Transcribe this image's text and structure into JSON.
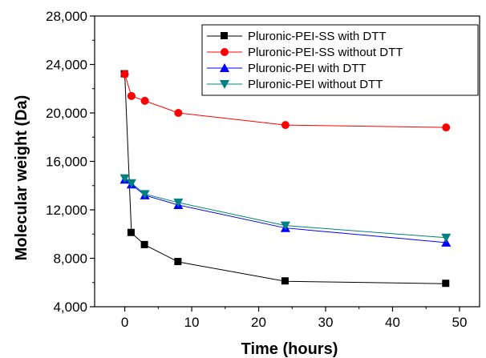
{
  "chart_data": {
    "type": "line",
    "xlabel": "Time (hours)",
    "ylabel": "Molecular weight (Da)",
    "xlim": [
      -4.5,
      53
    ],
    "ylim": [
      4000,
      28000
    ],
    "x_ticks": [
      0,
      10,
      20,
      30,
      40,
      50
    ],
    "y_ticks": [
      4000,
      8000,
      12000,
      16000,
      20000,
      24000,
      28000
    ],
    "x_tick_labels": [
      "0",
      "10",
      "20",
      "30",
      "40",
      "50"
    ],
    "y_tick_labels": [
      "4,000",
      "8,000",
      "12,000",
      "16,000",
      "20,000",
      "24,000",
      "28,000"
    ],
    "legend_position": "top-right",
    "grid": false,
    "series": [
      {
        "name": "Pluronic-PEI-SS with DTT",
        "color": "#000000",
        "marker": "square",
        "x": [
          0,
          1,
          3,
          8,
          24,
          48
        ],
        "y": [
          23200,
          10100,
          9100,
          7700,
          6100,
          5900
        ]
      },
      {
        "name": "Pluronic-PEI-SS without DTT",
        "color": "#ff0000",
        "marker": "circle",
        "x": [
          0,
          1,
          3,
          8,
          24,
          48
        ],
        "y": [
          23200,
          21400,
          21000,
          20000,
          19000,
          18800
        ]
      },
      {
        "name": "Pluronic-PEI with DTT",
        "color": "#0000ff",
        "marker": "triangle-up",
        "x": [
          0,
          1,
          3,
          8,
          24,
          48
        ],
        "y": [
          14500,
          14100,
          13200,
          12400,
          10500,
          9300
        ]
      },
      {
        "name": "Pluronic-PEI without DTT",
        "color": "#008080",
        "marker": "triangle-down",
        "x": [
          0,
          1,
          3,
          8,
          24,
          48
        ],
        "y": [
          14600,
          14200,
          13300,
          12600,
          10700,
          9700
        ]
      }
    ]
  }
}
